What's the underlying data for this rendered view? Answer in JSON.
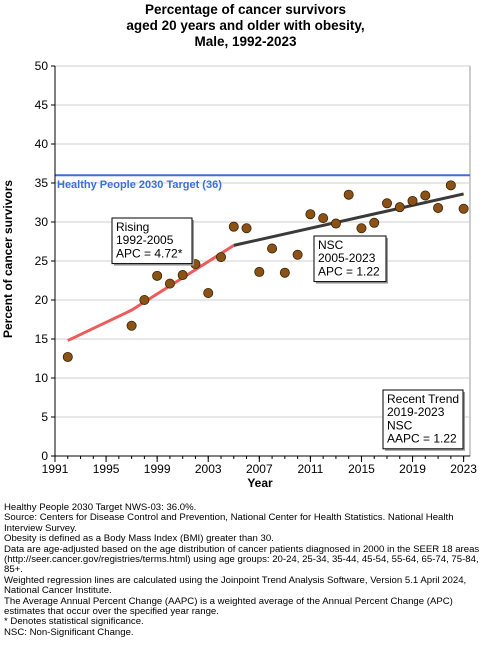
{
  "header": {
    "title_lines": [
      "Percentage of cancer survivors",
      "aged 20 years and older with obesity,",
      "Male,  1992-2023"
    ]
  },
  "chart_data": {
    "type": "scatter",
    "xlabel": "Year",
    "ylabel": "Percent of cancer survivors",
    "xlim": [
      1991,
      2023.5
    ],
    "ylim": [
      0,
      50
    ],
    "x_ticks": [
      1991,
      1995,
      1999,
      2003,
      2007,
      2011,
      2015,
      2019,
      2023
    ],
    "y_ticks": [
      0,
      5,
      10,
      15,
      20,
      25,
      30,
      35,
      40,
      45,
      50
    ],
    "grid": "horizontal",
    "points": [
      {
        "x": 1992,
        "y": 12.7
      },
      {
        "x": 1997,
        "y": 16.7
      },
      {
        "x": 1998,
        "y": 20.0
      },
      {
        "x": 1999,
        "y": 23.1
      },
      {
        "x": 2000,
        "y": 22.1
      },
      {
        "x": 2001,
        "y": 23.2
      },
      {
        "x": 2002,
        "y": 24.6
      },
      {
        "x": 2003,
        "y": 20.9
      },
      {
        "x": 2004,
        "y": 25.5
      },
      {
        "x": 2005,
        "y": 29.4
      },
      {
        "x": 2006,
        "y": 29.2
      },
      {
        "x": 2007,
        "y": 23.6
      },
      {
        "x": 2008,
        "y": 26.6
      },
      {
        "x": 2009,
        "y": 23.5
      },
      {
        "x": 2010,
        "y": 25.8
      },
      {
        "x": 2011,
        "y": 31.0
      },
      {
        "x": 2012,
        "y": 30.5
      },
      {
        "x": 2013,
        "y": 29.8
      },
      {
        "x": 2014,
        "y": 33.5
      },
      {
        "x": 2015,
        "y": 29.2
      },
      {
        "x": 2016,
        "y": 29.9
      },
      {
        "x": 2017,
        "y": 32.4
      },
      {
        "x": 2018,
        "y": 31.9
      },
      {
        "x": 2019,
        "y": 32.7
      },
      {
        "x": 2020,
        "y": 33.4
      },
      {
        "x": 2021,
        "y": 31.8
      },
      {
        "x": 2022,
        "y": 34.7
      },
      {
        "x": 2023,
        "y": 31.7
      }
    ],
    "target_line": {
      "y": 36,
      "label": "Healthy People 2030 Target (36)",
      "color": "#3b6fdc"
    },
    "trend_segments": [
      {
        "x": [
          1992,
          1997,
          2005
        ],
        "y": [
          14.8,
          18.7,
          27.0
        ],
        "color": "#ee5b5b"
      },
      {
        "x": [
          2005,
          2023
        ],
        "y": [
          27.0,
          33.6
        ],
        "color": "#3a3a3a"
      }
    ],
    "annotations": [
      {
        "lines": [
          "Rising",
          "1992-2005",
          "APC =  4.72*"
        ]
      },
      {
        "lines": [
          "NSC",
          "2005-2023",
          "APC =  1.22"
        ]
      },
      {
        "lines": [
          "Recent Trend",
          "2019-2023",
          "NSC",
          "AAPC =  1.22"
        ]
      }
    ],
    "marker_color": "#8b5218",
    "marker_edge": "#3a2200"
  },
  "footnotes": [
    "Healthy People 2030 Target NWS-03: 36.0%.",
    "Source: Centers for Disease Control and Prevention, National Center for Health Statistics. National Health Interview Survey.",
    "Obesity is defined as a Body Mass Index (BMI) greater than 30.",
    "Data are age-adjusted based on the age distribution of cancer patients diagnosed in 2000 in the SEER 18 areas (http://seer.cancer.gov/registries/terms.html) using age groups: 20-24, 25-34, 35-44, 45-54, 55-64, 65-74, 75-84, 85+.",
    "Weighted regression lines are calculated using the Joinpoint Trend Analysis Software, Version 5.1 April 2024, National Cancer Institute.",
    "The Average Annual Percent Change (AAPC) is a weighted average of the Annual Percent Change (APC) estimates that occur over the specified year range.",
    "* Denotes statistical significance.",
    "NSC: Non-Significant Change."
  ]
}
